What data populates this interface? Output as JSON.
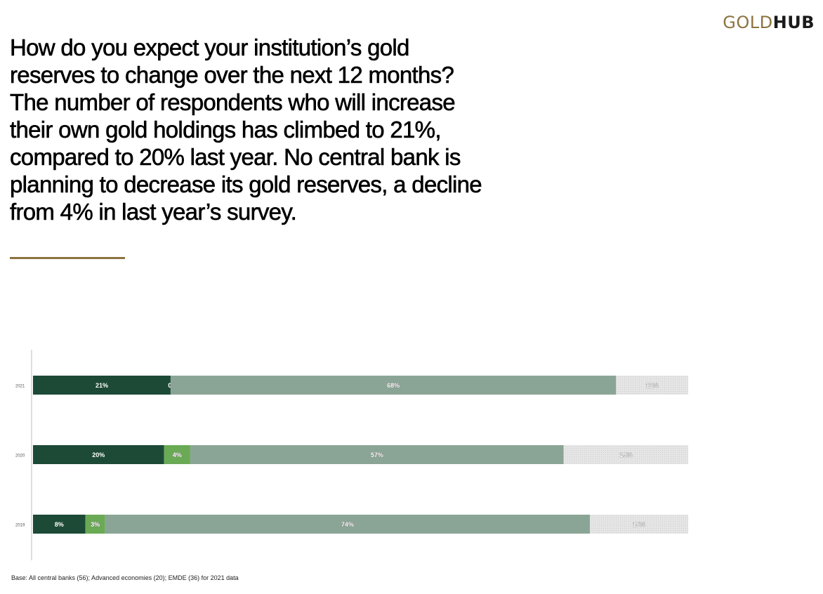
{
  "logo": {
    "part1": "GOLD",
    "part2": "HUB",
    "part1_color": "#8c7340",
    "part2_color": "#1a1a1a"
  },
  "headline": "How do you expect your institution’s gold reserves to change over the next 12 months? The number of respondents who will increase their own gold holdings has climbed to 21%, compared to 20% last year. No central bank is planning to decrease its gold reserves, a decline from 4% in last year’s survey.",
  "footnote": "Base: All central banks (56); Advanced economies (20); EMDE (36) for 2021 data",
  "chart_data": {
    "type": "bar",
    "orientation": "horizontal",
    "stacked": true,
    "xlim": [
      0,
      100
    ],
    "categories": [
      "2021",
      "2020",
      "2019"
    ],
    "series": [
      {
        "values": [
          21,
          20,
          8
        ],
        "labels": [
          "21%",
          "20%",
          "8%"
        ],
        "color": "#1c4a36",
        "label_color": "#ffffff"
      },
      {
        "values": [
          0,
          4,
          3
        ],
        "labels": [
          "0%",
          "4%",
          "3%"
        ],
        "color": "#6aaa55",
        "label_color": "#ffffff"
      },
      {
        "values": [
          68,
          57,
          74
        ],
        "labels": [
          "68%",
          "57%",
          "74%"
        ],
        "color": "#8aa596",
        "label_color": "#ffffff"
      },
      {
        "values": [
          11,
          19,
          15
        ],
        "labels": [
          "11%",
          "19%",
          "15%"
        ],
        "color": "#e3e3e3",
        "label_color": "#ffffff"
      }
    ]
  }
}
